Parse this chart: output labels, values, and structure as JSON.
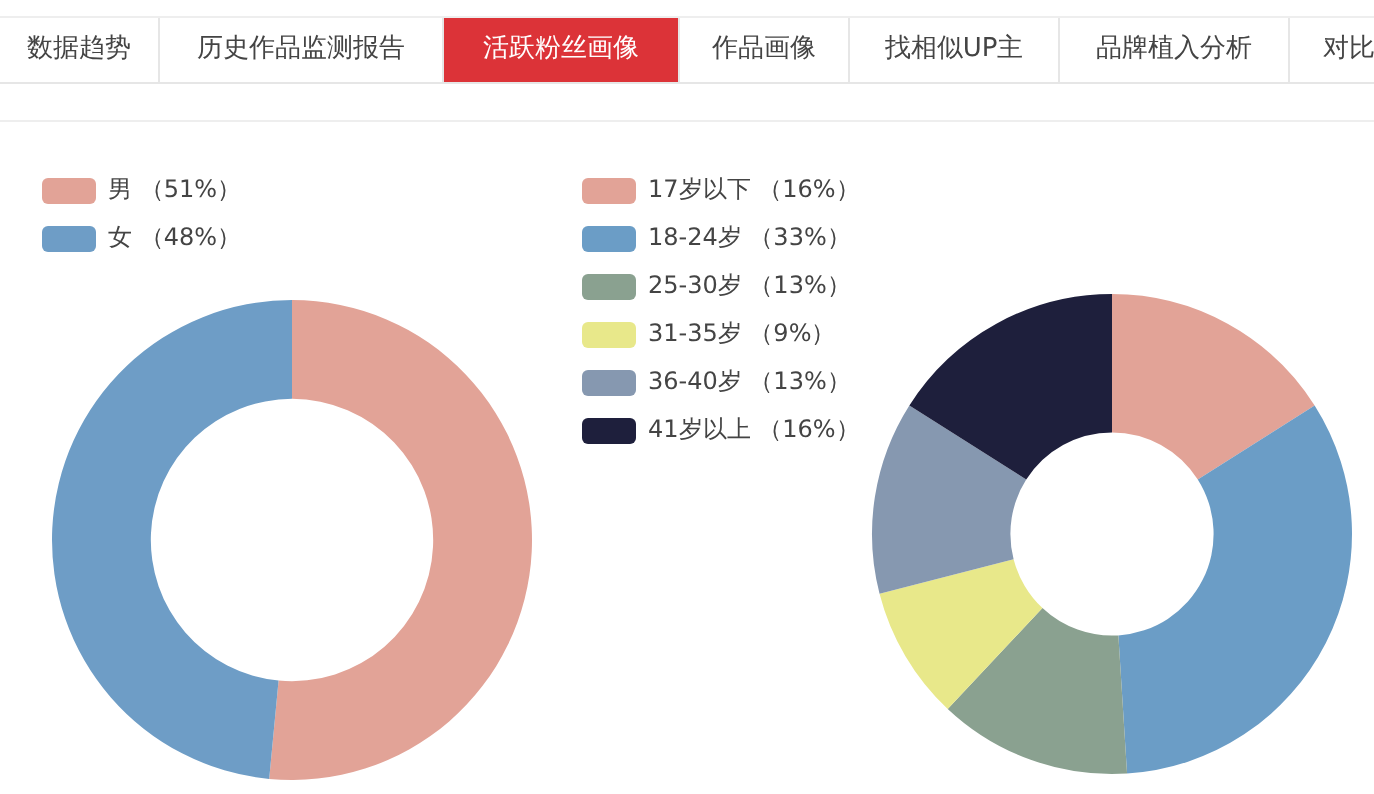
{
  "chart_data": [
    {
      "type": "other",
      "annotations": [
        "数据趋势",
        "历史作品监测报告",
        "活跃粉丝画像",
        "作品画像",
        "找相似UP主",
        "品牌植入分析",
        "对比"
      ]
    },
    {
      "type": "donut",
      "categories": [
        "男 （51%）",
        "女 （48%）"
      ],
      "values": [
        51,
        48
      ],
      "colors": [
        "#e2a397",
        "#6e9dc6"
      ],
      "legend": "top left"
    },
    {
      "type": "donut",
      "categories": [
        "17岁以下 （16%）",
        "18-24岁 （33%）",
        "25-30岁 （13%）",
        "31-35岁 （9%）",
        "36-40岁 （13%）",
        "41岁以上 （16%）"
      ],
      "values": [
        16,
        33,
        13,
        9,
        13,
        16
      ],
      "colors": [
        "#e2a397",
        "#6b9dc6",
        "#8aa190",
        "#e8e88a",
        "#8698b0",
        "#1e1f3c"
      ],
      "legend": "left"
    }
  ]
}
